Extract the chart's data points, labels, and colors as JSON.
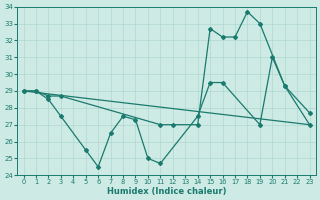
{
  "line1": {
    "x": [
      0,
      23
    ],
    "y": [
      29.0,
      27.0
    ]
  },
  "line2": {
    "x": [
      0,
      1,
      2,
      3,
      11,
      12,
      14,
      15,
      16,
      17,
      18,
      19,
      21,
      23
    ],
    "y": [
      29.0,
      29.0,
      28.7,
      28.7,
      27.0,
      27.0,
      27.0,
      32.7,
      32.2,
      32.2,
      33.7,
      33.0,
      29.3,
      27.0
    ]
  },
  "line3": {
    "x": [
      0,
      1,
      2,
      3,
      5,
      6,
      7,
      8,
      9,
      10,
      11,
      14,
      15,
      16,
      19,
      20,
      21,
      23
    ],
    "y": [
      29.0,
      29.0,
      28.5,
      27.5,
      25.5,
      24.5,
      26.5,
      27.5,
      27.3,
      25.0,
      24.7,
      27.5,
      29.5,
      29.5,
      27.0,
      31.0,
      29.3,
      27.7
    ]
  },
  "background_color": "#cdeae4",
  "grid_color": "#afd8d0",
  "line_color": "#1a7a6e",
  "xlabel": "Humidex (Indice chaleur)",
  "ylim": [
    24,
    34
  ],
  "xlim": [
    -0.5,
    23.5
  ],
  "yticks": [
    24,
    25,
    26,
    27,
    28,
    29,
    30,
    31,
    32,
    33,
    34
  ],
  "xticks": [
    0,
    1,
    2,
    3,
    4,
    5,
    6,
    7,
    8,
    9,
    10,
    11,
    12,
    13,
    14,
    15,
    16,
    17,
    18,
    19,
    20,
    21,
    22,
    23
  ]
}
